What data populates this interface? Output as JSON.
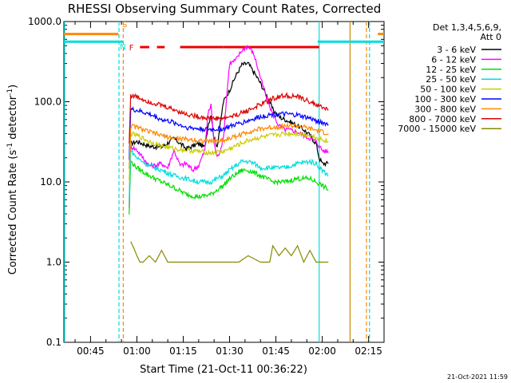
{
  "chart_data": {
    "type": "line",
    "title": "RHESSI Observing Summary Count Rates, Corrected",
    "xlabel": "Start Time (21-Oct-11 00:36:22)",
    "ylabel_main": "Corrected Count Rate (s",
    "ylabel_sup1": "-1",
    "ylabel_mid": " detector",
    "ylabel_sup2": "-1",
    "ylabel_end": ")",
    "y_scale": "log",
    "ylim": [
      0.1,
      1000
    ],
    "xlim_min": [
      36.37,
      140
    ],
    "x_ticks": [
      {
        "min": 45,
        "label": "00:45"
      },
      {
        "min": 60,
        "label": "01:00"
      },
      {
        "min": 75,
        "label": "01:15"
      },
      {
        "min": 90,
        "label": "01:30"
      },
      {
        "min": 105,
        "label": "01:45"
      },
      {
        "min": 120,
        "label": "02:00"
      },
      {
        "min": 135,
        "label": "02:15"
      }
    ],
    "y_ticks": [
      {
        "value": 1000,
        "label": "1000.0"
      },
      {
        "value": 100,
        "label": "100.0"
      },
      {
        "value": 10,
        "label": "10.0"
      },
      {
        "value": 1,
        "label": "1.0"
      },
      {
        "value": 0.1,
        "label": "0.1"
      }
    ],
    "legend_header": [
      "Det 1,3,4,5,6,9,",
      "Att 0"
    ],
    "legend_position": "right",
    "timestamp": "21-Oct-2021 11:59",
    "series": [
      {
        "name": "3 - 6 keV",
        "color": "#000000",
        "x": [
          58,
          60,
          64,
          68,
          72,
          76,
          80,
          82,
          83,
          84,
          85,
          86,
          88,
          90,
          92,
          94,
          96,
          98,
          100,
          102,
          104,
          106,
          108,
          110,
          112,
          114,
          116,
          118,
          119,
          120,
          121,
          122
        ],
        "y": [
          30,
          32,
          28,
          27,
          35,
          26,
          30,
          27,
          50,
          70,
          35,
          28,
          100,
          140,
          210,
          290,
          300,
          230,
          170,
          120,
          80,
          65,
          60,
          55,
          50,
          45,
          38,
          30,
          20,
          17,
          17,
          17
        ]
      },
      {
        "name": "6 - 12 keV",
        "color": "#ff00ff",
        "x": [
          57.5,
          58,
          60,
          62,
          64,
          66,
          68,
          70,
          72,
          74,
          76,
          78,
          80,
          82,
          83,
          84,
          85,
          86,
          87,
          88,
          89,
          90,
          92,
          94,
          96,
          98,
          100,
          102,
          104,
          106,
          108,
          110,
          112,
          114,
          116,
          118,
          119,
          120,
          121,
          122
        ],
        "y": [
          5,
          28,
          25,
          20,
          16,
          16,
          17,
          15,
          25,
          16,
          17,
          14,
          16,
          25,
          70,
          90,
          30,
          20,
          25,
          35,
          110,
          300,
          330,
          440,
          500,
          380,
          200,
          110,
          70,
          50,
          45,
          44,
          42,
          38,
          35,
          32,
          28,
          25,
          24,
          24
        ]
      },
      {
        "name": "12 - 25 keV",
        "color": "#00dd00",
        "x": [
          57.5,
          58,
          60,
          64,
          68,
          72,
          76,
          80,
          84,
          86,
          88,
          90,
          94,
          96,
          98,
          100,
          104,
          108,
          112,
          116,
          118,
          120,
          122
        ],
        "y": [
          4,
          18,
          15,
          12,
          10,
          8.5,
          7,
          6.5,
          7,
          8,
          9,
          11,
          14,
          14,
          13,
          12,
          10,
          10,
          11,
          11,
          10,
          9,
          8
        ]
      },
      {
        "name": "25 - 50 keV",
        "color": "#00dddd",
        "x": [
          57.5,
          58,
          60,
          64,
          68,
          72,
          76,
          80,
          84,
          86,
          88,
          90,
          94,
          96,
          98,
          100,
          104,
          108,
          112,
          116,
          118,
          120,
          122
        ],
        "y": [
          6,
          25,
          20,
          16,
          14,
          12,
          11,
          10,
          10,
          11,
          12,
          14,
          18,
          18,
          17,
          15,
          15,
          15,
          17,
          18,
          17,
          14,
          12
        ]
      },
      {
        "name": "50 - 100 keV",
        "color": "#cccc00",
        "x": [
          57.5,
          58,
          60,
          64,
          68,
          72,
          76,
          80,
          84,
          88,
          92,
          96,
          100,
          104,
          108,
          112,
          116,
          118,
          120,
          122
        ],
        "y": [
          10,
          40,
          38,
          32,
          28,
          26,
          25,
          24,
          23,
          24,
          28,
          33,
          36,
          38,
          40,
          40,
          38,
          36,
          34,
          32
        ]
      },
      {
        "name": "100 - 300 keV",
        "color": "#0000ff",
        "x": [
          57.5,
          58,
          60,
          64,
          68,
          72,
          76,
          80,
          84,
          88,
          92,
          96,
          100,
          104,
          108,
          112,
          116,
          118,
          120,
          122
        ],
        "y": [
          20,
          80,
          78,
          70,
          60,
          55,
          48,
          46,
          45,
          46,
          52,
          58,
          65,
          70,
          70,
          68,
          62,
          58,
          55,
          52
        ]
      },
      {
        "name": "300 - 800 keV",
        "color": "#ff8800",
        "x": [
          57.5,
          58,
          60,
          64,
          68,
          72,
          76,
          80,
          84,
          88,
          92,
          96,
          100,
          104,
          108,
          112,
          116,
          118,
          120,
          122
        ],
        "y": [
          15,
          50,
          48,
          42,
          38,
          35,
          34,
          33,
          32,
          33,
          37,
          42,
          46,
          48,
          50,
          50,
          46,
          44,
          42,
          40
        ]
      },
      {
        "name": "800 - 7000 keV",
        "color": "#dd0000",
        "x": [
          57.5,
          58,
          60,
          64,
          68,
          72,
          76,
          80,
          84,
          88,
          92,
          96,
          100,
          104,
          108,
          112,
          116,
          118,
          120,
          122
        ],
        "y": [
          30,
          120,
          115,
          100,
          90,
          80,
          70,
          65,
          62,
          62,
          68,
          78,
          92,
          110,
          120,
          115,
          100,
          92,
          85,
          80
        ]
      },
      {
        "name": "7000 - 15000 keV",
        "color": "#888800",
        "x": [
          58,
          59,
          60,
          61,
          62,
          64,
          66,
          68,
          70,
          72,
          74,
          93,
          96,
          100,
          103,
          104,
          106,
          108,
          110,
          112,
          114,
          116,
          118,
          119,
          120,
          122
        ],
        "y": [
          1.8,
          1.5,
          1.2,
          1,
          1,
          1.2,
          1,
          1.4,
          1,
          1,
          1,
          1,
          1.2,
          1,
          1,
          1.6,
          1.2,
          1.5,
          1.2,
          1.6,
          1,
          1.4,
          1,
          1,
          1,
          1
        ]
      }
    ],
    "flags": {
      "S_label": "S",
      "N_label": "N",
      "F_label": "F",
      "saa_x": [
        36.37,
        54,
        138,
        140
      ],
      "saa_y_value": 700,
      "night_intervals": [
        [
          36.37,
          55.5
        ],
        [
          118.5,
          140
        ]
      ],
      "night_y_value": 560,
      "flare_segments": [
        [
          61,
          64
        ],
        [
          66.5,
          69
        ],
        [
          74,
          88
        ],
        [
          88,
          119
        ]
      ],
      "flare_y_value": 480,
      "vertical_lines": [
        {
          "x": 36.6,
          "color": "#00dddd",
          "style": "solid"
        },
        {
          "x": 54.2,
          "color": "#00dddd",
          "style": "dashed"
        },
        {
          "x": 55.6,
          "color": "#ff8800",
          "style": "dashed"
        },
        {
          "x": 119.0,
          "color": "#00dddd",
          "style": "solid"
        },
        {
          "x": 129.0,
          "color": "#cc8800",
          "style": "solid"
        },
        {
          "x": 134.3,
          "color": "#ff8800",
          "style": "dashed"
        },
        {
          "x": 135.3,
          "color": "#00dddd",
          "style": "dashed"
        }
      ]
    }
  }
}
